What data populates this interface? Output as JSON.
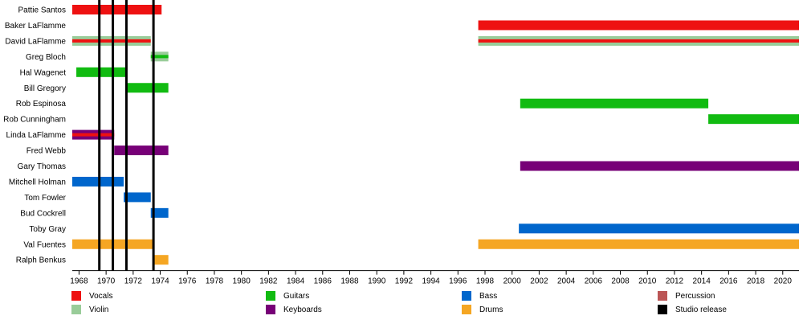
{
  "chart_data": {
    "type": "timeline",
    "x_range": [
      1967.5,
      2021.2
    ],
    "x_ticks": [
      1968,
      1970,
      1972,
      1974,
      1976,
      1978,
      1980,
      1982,
      1984,
      1986,
      1988,
      1990,
      1992,
      1994,
      1996,
      1998,
      2000,
      2002,
      2004,
      2006,
      2008,
      2010,
      2012,
      2014,
      2016,
      2018,
      2020
    ],
    "role_colors": {
      "Vocals": "#ee1111",
      "Violin": "#99cc99",
      "Guitars": "#11bb11",
      "Keyboards": "#770077",
      "Bass": "#0066cc",
      "Drums": "#f5a623",
      "Percussion": "#bb5555",
      "Studio release": "#000000"
    },
    "members": [
      {
        "name": "Pattie Santos",
        "spans": [
          {
            "role": "Vocals",
            "start": 1967.5,
            "end": 1974.1
          }
        ]
      },
      {
        "name": "Baker LaFlamme",
        "spans": [
          {
            "role": "Vocals",
            "start": 1997.5,
            "end": 2021.2
          }
        ]
      },
      {
        "name": "David LaFlamme",
        "spans": [
          {
            "role": "Violin",
            "start": 1967.5,
            "end": 1973.3,
            "secondary": "Vocals"
          },
          {
            "role": "Violin",
            "start": 1997.5,
            "end": 2021.2,
            "secondary": "Vocals"
          }
        ]
      },
      {
        "name": "Greg Bloch",
        "spans": [
          {
            "role": "Violin",
            "start": 1973.3,
            "end": 1974.6,
            "secondary": "Guitars"
          }
        ]
      },
      {
        "name": "Hal Wagenet",
        "spans": [
          {
            "role": "Guitars",
            "start": 1967.8,
            "end": 1971.5
          }
        ]
      },
      {
        "name": "Bill Gregory",
        "spans": [
          {
            "role": "Guitars",
            "start": 1971.5,
            "end": 1974.6
          }
        ]
      },
      {
        "name": "Rob Espinosa",
        "spans": [
          {
            "role": "Guitars",
            "start": 2000.6,
            "end": 2014.5
          }
        ]
      },
      {
        "name": "Rob Cunningham",
        "spans": [
          {
            "role": "Guitars",
            "start": 2014.5,
            "end": 2021.2
          }
        ]
      },
      {
        "name": "Linda LaFlamme",
        "spans": [
          {
            "role": "Keyboards",
            "start": 1967.5,
            "end": 1970.6,
            "secondary": "Vocals"
          }
        ]
      },
      {
        "name": "Fred Webb",
        "spans": [
          {
            "role": "Keyboards",
            "start": 1970.6,
            "end": 1974.6
          }
        ]
      },
      {
        "name": "Gary Thomas",
        "spans": [
          {
            "role": "Keyboards",
            "start": 2000.6,
            "end": 2021.2
          }
        ]
      },
      {
        "name": "Mitchell Holman",
        "spans": [
          {
            "role": "Bass",
            "start": 1967.5,
            "end": 1971.3
          }
        ]
      },
      {
        "name": "Tom Fowler",
        "spans": [
          {
            "role": "Bass",
            "start": 1971.3,
            "end": 1973.3
          }
        ]
      },
      {
        "name": "Bud Cockrell",
        "spans": [
          {
            "role": "Bass",
            "start": 1973.3,
            "end": 1974.6
          }
        ]
      },
      {
        "name": "Toby Gray",
        "spans": [
          {
            "role": "Bass",
            "start": 2000.5,
            "end": 2021.2
          }
        ]
      },
      {
        "name": "Val Fuentes",
        "spans": [
          {
            "role": "Drums",
            "start": 1967.5,
            "end": 1973.5
          },
          {
            "role": "Drums",
            "start": 1997.5,
            "end": 2021.2
          }
        ]
      },
      {
        "name": "Ralph Benkus",
        "spans": [
          {
            "role": "Drums",
            "start": 1973.5,
            "end": 1974.6
          }
        ]
      }
    ],
    "studio_releases": [
      1969.5,
      1970.5,
      1971.5,
      1973.5
    ],
    "legend": [
      [
        "Vocals",
        "Violin"
      ],
      [
        "Guitars",
        "Keyboards"
      ],
      [
        "Bass",
        "Drums"
      ],
      [
        "Percussion",
        "Studio release"
      ]
    ]
  }
}
